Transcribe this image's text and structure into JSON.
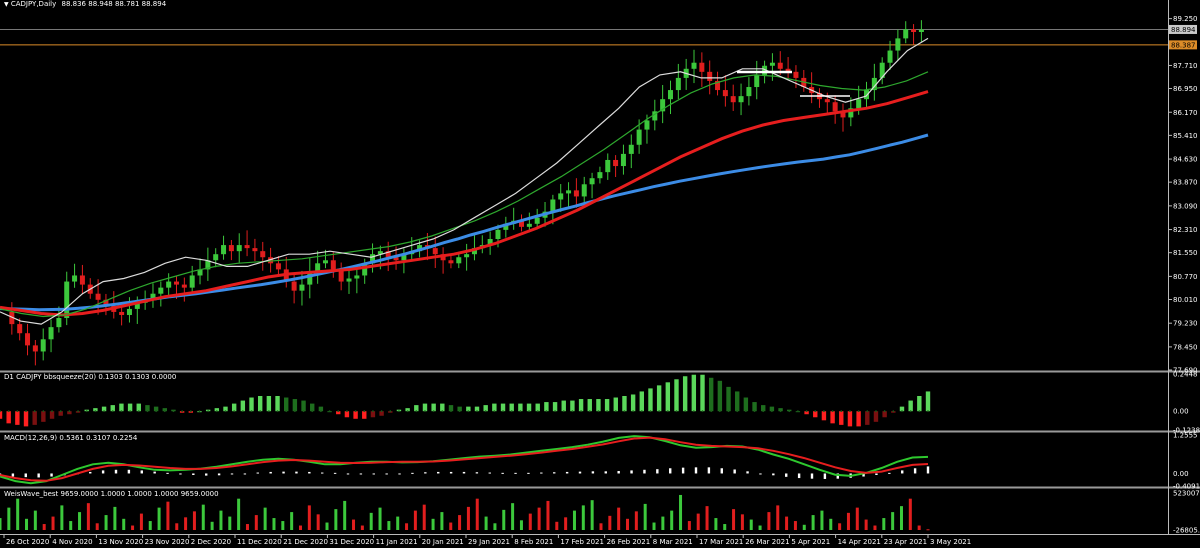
{
  "header": {
    "symbol_title": "CADJPY,Daily",
    "ohlc": "88.836 88.948 88.781 88.894"
  },
  "panels": {
    "bbsqueeze_title": "D1 CADJPY bbsqueeze(20) 0.1303 0.1303 0.0000",
    "macd_title": "MACD(12,26,9) 0.5361 0.3107 0.2254",
    "weiswave_title": "WeisWave_best 9659.0000 1.0000 1.0000 1.0000 9659.0000"
  },
  "price_labels": {
    "current_price": "88.894",
    "horizontal_line": "88.387"
  },
  "colors": {
    "background": "#000000",
    "bull": "#3cc83c",
    "bear": "#e11e1e",
    "sma_slow": "#3c8ce6",
    "ema_mid": "#e61e1e",
    "ema_fast": "#2ea82e",
    "ema_fastest": "#dcdcdc",
    "grid_text": "#ffffff",
    "current_price_box": "#c8c8c8",
    "hline": "#dc8c28"
  },
  "chart_data": [
    {
      "type": "candlestick",
      "name": "main",
      "title": "CADJPY,Daily",
      "y_ticks": [
        "89.250",
        "88.894",
        "88.387",
        "87.710",
        "86.950",
        "86.170",
        "85.410",
        "84.630",
        "83.870",
        "83.090",
        "82.310",
        "81.550",
        "80.770",
        "80.010",
        "79.230",
        "78.450",
        "77.690"
      ],
      "ylim": [
        77.69,
        89.6
      ],
      "x_ticks": [
        "26 Oct 2020",
        "4 Nov 2020",
        "13 Nov 2020",
        "23 Nov 2020",
        "2 Dec 2020",
        "11 Dec 2020",
        "21 Dec 2020",
        "31 Dec 2020",
        "11 Jan 2021",
        "20 Jan 2021",
        "29 Jan 2021",
        "8 Feb 2021",
        "17 Feb 2021",
        "26 Feb 2021",
        "8 Mar 2021",
        "17 Mar 2021",
        "26 Mar 2021",
        "5 Apr 2021",
        "14 Apr 2021",
        "23 Apr 2021",
        "3 May 2021"
      ],
      "x_tick_bar_index": [
        0,
        7,
        14,
        21,
        28,
        35,
        42,
        49,
        56,
        63,
        70,
        77,
        84,
        91,
        98,
        105,
        112,
        119,
        126,
        133,
        140
      ],
      "closes": [
        79.6,
        79.2,
        78.9,
        78.5,
        78.3,
        78.7,
        79.1,
        79.4,
        80.6,
        80.8,
        80.5,
        80.2,
        80.0,
        79.8,
        79.6,
        79.5,
        79.7,
        79.9,
        80.0,
        80.2,
        80.4,
        80.6,
        80.5,
        80.4,
        80.8,
        81.0,
        81.3,
        81.5,
        81.8,
        81.6,
        81.8,
        81.7,
        81.6,
        81.4,
        81.2,
        81.0,
        80.6,
        80.3,
        80.5,
        80.9,
        81.2,
        81.3,
        81.0,
        80.6,
        80.7,
        80.8,
        81.2,
        81.5,
        81.6,
        81.4,
        81.3,
        81.5,
        81.6,
        81.8,
        81.7,
        81.5,
        81.3,
        81.2,
        81.4,
        81.5,
        81.7,
        81.8,
        82.0,
        82.3,
        82.5,
        82.6,
        82.4,
        82.5,
        82.7,
        82.9,
        83.3,
        83.5,
        83.6,
        83.4,
        83.8,
        84.0,
        84.2,
        84.6,
        84.4,
        84.8,
        85.1,
        85.6,
        85.9,
        86.2,
        86.6,
        86.9,
        87.3,
        87.6,
        87.8,
        87.5,
        87.2,
        86.9,
        86.7,
        86.5,
        86.7,
        87.0,
        87.4,
        87.7,
        87.8,
        87.6,
        87.5,
        87.3,
        87.0,
        86.8,
        86.6,
        86.5,
        86.2,
        86.0,
        86.3,
        86.6,
        86.9,
        87.3,
        87.8,
        88.2,
        88.6,
        88.9,
        88.81,
        88.89
      ],
      "series": [
        {
          "name": "",
          "kind": "SMA slow",
          "color": "#3c8ce6",
          "values": [
            79.71,
            79.7,
            79.69,
            79.67,
            79.68,
            79.69,
            79.72,
            79.76,
            79.81,
            79.86,
            79.92,
            79.98,
            80.04,
            80.1,
            80.15,
            80.2,
            80.26,
            80.32,
            80.38,
            80.44,
            80.5,
            80.57,
            80.64,
            80.72,
            80.81,
            80.9,
            80.99,
            81.09,
            81.19,
            81.29,
            81.4,
            81.51,
            81.63,
            81.75,
            81.88,
            82.0,
            82.13,
            82.25,
            82.38,
            82.5,
            82.62,
            82.74,
            82.86,
            82.97,
            83.08,
            83.2,
            83.31,
            83.42,
            83.52,
            83.62,
            83.72,
            83.81,
            83.9,
            83.98,
            84.06,
            84.14,
            84.21,
            84.28,
            84.35,
            84.41,
            84.47,
            84.53,
            84.58,
            84.63,
            84.7,
            84.77,
            84.87,
            84.97,
            85.08,
            85.18,
            85.3,
            85.42
          ]
        },
        {
          "name": "",
          "kind": "EMA mid",
          "color": "#e61e1e",
          "values": [
            79.75,
            79.65,
            79.55,
            79.5,
            79.55,
            79.65,
            79.8,
            79.95,
            80.1,
            80.2,
            80.3,
            80.45,
            80.6,
            80.75,
            80.85,
            80.9,
            80.95,
            81.0,
            81.1,
            81.2,
            81.3,
            81.4,
            81.5,
            81.65,
            81.85,
            82.1,
            82.35,
            82.65,
            82.95,
            83.3,
            83.65,
            84.0,
            84.35,
            84.7,
            85.0,
            85.3,
            85.55,
            85.75,
            85.9,
            86.0,
            86.1,
            86.2,
            86.3,
            86.45,
            86.65,
            86.85
          ]
        },
        {
          "name": "",
          "kind": "EMA fast",
          "color": "#2ea82e",
          "values": [
            79.7,
            79.55,
            79.45,
            79.5,
            79.7,
            80.0,
            80.3,
            80.55,
            80.75,
            80.95,
            81.1,
            81.2,
            81.25,
            81.3,
            81.35,
            81.45,
            81.55,
            81.65,
            81.75,
            81.9,
            82.1,
            82.35,
            82.6,
            82.9,
            83.25,
            83.65,
            84.05,
            84.5,
            84.95,
            85.45,
            85.95,
            86.4,
            86.8,
            87.1,
            87.3,
            87.4,
            87.35,
            87.2,
            87.05,
            86.95,
            86.9,
            87.0,
            87.2,
            87.5
          ]
        },
        {
          "name": "",
          "kind": "EMA fastest",
          "color": "#dcdcdc",
          "values": [
            79.6,
            79.3,
            79.2,
            79.6,
            80.2,
            80.6,
            80.7,
            80.9,
            81.2,
            81.4,
            81.3,
            81.1,
            81.1,
            81.3,
            81.5,
            81.5,
            81.6,
            81.5,
            81.4,
            81.6,
            81.8,
            82.0,
            82.3,
            82.7,
            83.1,
            83.5,
            84.0,
            84.5,
            85.1,
            85.7,
            86.3,
            87.0,
            87.4,
            87.5,
            87.3,
            87.3,
            87.6,
            87.6,
            87.3,
            87.0,
            86.7,
            86.5,
            86.7,
            87.5,
            88.2,
            88.6
          ]
        }
      ]
    },
    {
      "type": "bar",
      "name": "bbsqueeze(20)",
      "title": "D1 CADJPY bbsqueeze(20) 0.1303 0.1303 0.0000",
      "y_ticks": [
        "0.2448",
        "0.00",
        "-0.1238"
      ],
      "ylim": [
        -0.1238,
        0.2448
      ],
      "values": [
        -0.05,
        -0.08,
        -0.09,
        -0.1,
        -0.09,
        -0.07,
        -0.05,
        -0.03,
        -0.02,
        -0.01,
        0.01,
        0.02,
        0.03,
        0.04,
        0.05,
        0.05,
        0.05,
        0.04,
        0.03,
        0.02,
        0.01,
        -0.01,
        -0.01,
        0.0,
        0.01,
        0.02,
        0.03,
        0.05,
        0.07,
        0.09,
        0.1,
        0.1,
        0.1,
        0.09,
        0.08,
        0.07,
        0.05,
        0.03,
        0.0,
        -0.02,
        -0.04,
        -0.05,
        -0.05,
        -0.04,
        -0.03,
        -0.01,
        0.01,
        0.02,
        0.04,
        0.05,
        0.05,
        0.05,
        0.04,
        0.03,
        0.03,
        0.03,
        0.04,
        0.05,
        0.05,
        0.05,
        0.05,
        0.05,
        0.05,
        0.06,
        0.06,
        0.07,
        0.07,
        0.08,
        0.08,
        0.08,
        0.08,
        0.09,
        0.1,
        0.11,
        0.13,
        0.15,
        0.17,
        0.19,
        0.21,
        0.23,
        0.24,
        0.24,
        0.22,
        0.2,
        0.16,
        0.13,
        0.09,
        0.06,
        0.04,
        0.03,
        0.02,
        0.01,
        0.0,
        -0.02,
        -0.04,
        -0.06,
        -0.08,
        -0.09,
        -0.1,
        -0.1,
        -0.09,
        -0.07,
        -0.04,
        -0.01,
        0.03,
        0.07,
        0.1,
        0.13
      ]
    },
    {
      "type": "line",
      "name": "MACD(12,26,9)",
      "title": "MACD(12,26,9) 0.5361 0.3107 0.2254",
      "y_ticks": [
        "1.2555",
        "0.00",
        "-0.4091"
      ],
      "ylim": [
        -0.4091,
        1.2555
      ],
      "series": [
        {
          "name": "",
          "kind": "histogram",
          "color": "#ffffff",
          "values": [
            -0.05,
            -0.1,
            -0.12,
            -0.13,
            -0.1,
            -0.06,
            0.0,
            0.05,
            0.1,
            0.12,
            0.12,
            0.1,
            0.06,
            0.02,
            -0.02,
            -0.05,
            -0.07,
            -0.06,
            -0.03,
            0.0,
            0.03,
            0.05,
            0.06,
            0.06,
            0.05,
            0.03,
            0.02,
            0.0,
            -0.02,
            -0.03,
            -0.02,
            0.0,
            0.02,
            0.04,
            0.05,
            0.05,
            0.05,
            0.04,
            0.03,
            0.02,
            0.02,
            0.02,
            0.03,
            0.04,
            0.05,
            0.06,
            0.07,
            0.07,
            0.08,
            0.1,
            0.12,
            0.14,
            0.17,
            0.19,
            0.2,
            0.2,
            0.17,
            0.13,
            0.07,
            0.0,
            -0.06,
            -0.11,
            -0.15,
            -0.17,
            -0.18,
            -0.17,
            -0.14,
            -0.1,
            -0.05,
            0.02,
            0.1,
            0.17,
            0.23
          ]
        },
        {
          "name": "",
          "kind": "MACD",
          "color": "#2ec82e",
          "values": [
            -0.1,
            -0.25,
            -0.32,
            -0.25,
            -0.05,
            0.15,
            0.3,
            0.35,
            0.3,
            0.2,
            0.12,
            0.1,
            0.12,
            0.16,
            0.22,
            0.3,
            0.38,
            0.45,
            0.48,
            0.45,
            0.38,
            0.3,
            0.3,
            0.35,
            0.38,
            0.38,
            0.36,
            0.37,
            0.4,
            0.45,
            0.5,
            0.55,
            0.58,
            0.62,
            0.68,
            0.74,
            0.8,
            0.86,
            0.94,
            1.04,
            1.16,
            1.22,
            1.18,
            1.06,
            0.92,
            0.84,
            0.86,
            0.9,
            0.88,
            0.78,
            0.62,
            0.48,
            0.3,
            0.12,
            -0.04,
            -0.08,
            0.02,
            0.18,
            0.38,
            0.52,
            0.54
          ]
        },
        {
          "name": "",
          "kind": "signal",
          "color": "#e61e1e",
          "values": [
            -0.05,
            -0.15,
            -0.22,
            -0.24,
            -0.15,
            0.0,
            0.15,
            0.25,
            0.28,
            0.26,
            0.22,
            0.18,
            0.15,
            0.15,
            0.18,
            0.23,
            0.3,
            0.37,
            0.42,
            0.44,
            0.42,
            0.38,
            0.35,
            0.34,
            0.35,
            0.37,
            0.38,
            0.38,
            0.39,
            0.42,
            0.46,
            0.5,
            0.54,
            0.58,
            0.63,
            0.68,
            0.74,
            0.8,
            0.87,
            0.95,
            1.05,
            1.14,
            1.17,
            1.12,
            1.02,
            0.94,
            0.9,
            0.88,
            0.86,
            0.82,
            0.74,
            0.63,
            0.5,
            0.35,
            0.2,
            0.08,
            0.02,
            0.06,
            0.18,
            0.28,
            0.31
          ]
        }
      ]
    },
    {
      "type": "bar",
      "name": "WeisWave_best",
      "title": "WeisWave_best 9659.0000 1.0000 1.0000 1.0000 9659.0000",
      "y_ticks": [
        "523007.1",
        "-26805.1"
      ],
      "ylim": [
        -26805.1,
        523007.1
      ],
      "note": "volume waves coloured by wave direction",
      "values": [
        160000,
        300000,
        420000,
        150000,
        260000,
        80000,
        180000,
        330000,
        120000,
        240000,
        360000,
        90000,
        200000,
        310000,
        150000,
        60000,
        220000,
        120000,
        300000,
        380000,
        90000,
        170000,
        250000,
        340000,
        110000,
        260000,
        180000,
        420000,
        80000,
        200000,
        300000,
        160000,
        120000,
        240000,
        60000,
        330000,
        210000,
        100000,
        280000,
        390000,
        140000,
        60000,
        230000,
        300000,
        120000,
        180000,
        90000,
        260000,
        340000,
        150000,
        240000,
        100000,
        200000,
        310000,
        420000,
        180000,
        90000,
        270000,
        360000,
        130000,
        220000,
        300000,
        390000,
        110000,
        170000,
        260000,
        330000,
        400000,
        90000,
        190000,
        300000,
        150000,
        250000,
        350000,
        100000,
        180000,
        260000,
        470000,
        120000,
        220000,
        320000,
        160000,
        80000,
        280000,
        210000,
        140000,
        60000,
        240000,
        330000,
        180000,
        120000,
        70000,
        200000,
        260000,
        150000,
        90000,
        230000,
        300000,
        140000,
        60000,
        160000,
        240000,
        320000,
        420000,
        60000,
        9659
      ],
      "signs": "mixed"
    }
  ]
}
